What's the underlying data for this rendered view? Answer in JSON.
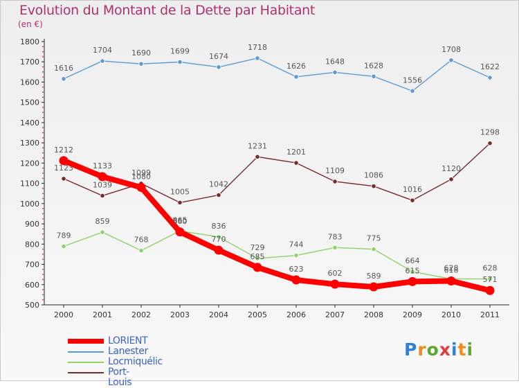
{
  "chart_data": {
    "type": "line",
    "title": "Evolution du Montant de la Dette par Habitant",
    "subtitle": "(en €)",
    "x": [
      "2000",
      "2001",
      "2002",
      "2003",
      "2004",
      "2005",
      "2006",
      "2007",
      "2008",
      "2009",
      "2010",
      "2011"
    ],
    "ylim": [
      500,
      1800
    ],
    "yticks": [
      500,
      600,
      700,
      800,
      900,
      1000,
      1100,
      1200,
      1300,
      1400,
      1500,
      1600,
      1700,
      1800
    ],
    "grid": false,
    "legend_position": "bottom-left",
    "series": [
      {
        "name": "Lanester",
        "color": "#5b9bd5",
        "values": [
          1616,
          1704,
          1690,
          1699,
          1674,
          1718,
          1626,
          1648,
          1628,
          1556,
          1708,
          1622
        ]
      },
      {
        "name": "Locmiquélic",
        "color": "#8fd16a",
        "values": [
          789,
          859,
          768,
          865,
          836,
          729,
          744,
          783,
          775,
          664,
          628,
          628
        ]
      },
      {
        "name": "Port-Louis",
        "color": "#7a2a2a",
        "values": [
          1123,
          1039,
          1099,
          1005,
          1042,
          1231,
          1201,
          1109,
          1086,
          1016,
          1120,
          1298
        ]
      },
      {
        "name": "LORIENT",
        "color": "#ff0000",
        "values": [
          1212,
          1133,
          1080,
          860,
          770,
          685,
          623,
          602,
          589,
          615,
          618,
          571
        ]
      }
    ]
  },
  "legend": {
    "items": [
      {
        "label": "LORIENT",
        "color": "#ff0000"
      },
      {
        "label": "Lanester",
        "color": "#5b9bd5"
      },
      {
        "label": "Locmiquélic",
        "color": "#8fd16a"
      },
      {
        "label": "Port-Louis",
        "color": "#7a2a2a"
      }
    ]
  },
  "logo": {
    "text": "Proxiti"
  }
}
